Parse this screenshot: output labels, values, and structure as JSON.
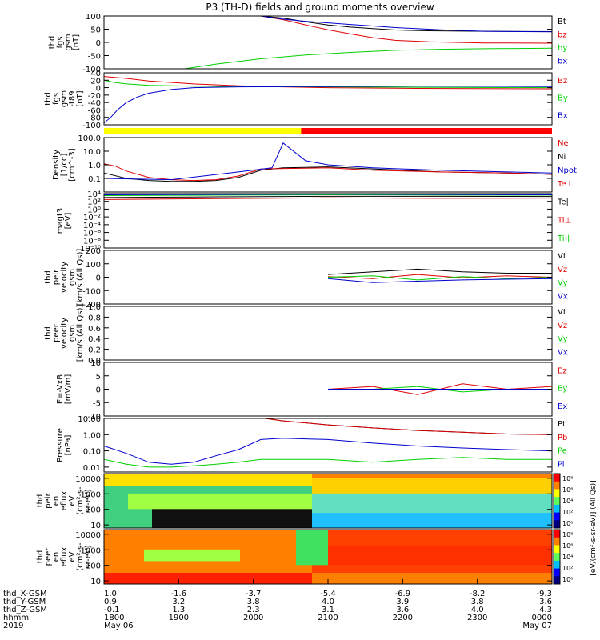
{
  "title": "P3 (TH-D) fields and ground moments overview",
  "colors": {
    "black": "#000000",
    "red": "#e00000",
    "green": "#00d000",
    "blue": "#0000d0",
    "yellow": "#ffff00",
    "bar_red": "#ff0000"
  },
  "chart_data": [
    {
      "type": "line",
      "id": "fgs",
      "ylabel": [
        "thd",
        "fgs",
        "gsm",
        "[nT]"
      ],
      "ylim": [
        -100,
        100
      ],
      "yticks": [
        "100",
        "50",
        "0",
        "-50",
        "-100"
      ],
      "tick_values": [
        100,
        50,
        0,
        -50,
        -100
      ],
      "legend": [
        {
          "name": "Bt",
          "color": "#000000"
        },
        {
          "name": "bz",
          "color": "#e00000"
        },
        {
          "name": "by",
          "color": "#00d000"
        },
        {
          "name": "bx",
          "color": "#0000d0"
        }
      ],
      "series": [
        {
          "name": "Bt",
          "color": "#000000",
          "x": [
            1.7,
            1.8,
            1.9,
            2.0,
            2.1,
            2.2,
            2.3,
            2.45,
            2.7,
            3.0
          ],
          "y": [
            100,
            92,
            78,
            66,
            58,
            52,
            47,
            44,
            42,
            41
          ]
        },
        {
          "name": "bz",
          "color": "#e00000",
          "x": [
            1.7,
            1.8,
            1.9,
            2.0,
            2.1,
            2.2,
            2.3,
            2.45,
            2.7,
            3.0
          ],
          "y": [
            100,
            86,
            66,
            48,
            32,
            18,
            8,
            2,
            -2,
            -3
          ]
        },
        {
          "name": "by",
          "color": "#00d000",
          "x": [
            1.36,
            1.5,
            1.7,
            1.9,
            2.1,
            2.3,
            2.5,
            2.7,
            3.0
          ],
          "y": [
            -100,
            -82,
            -62,
            -48,
            -38,
            -30,
            -26,
            -24,
            -22
          ]
        },
        {
          "name": "bx",
          "color": "#0000d0",
          "x": [
            1.7,
            1.8,
            1.9,
            2.0,
            2.1,
            2.2,
            2.3,
            2.5,
            2.7,
            3.0
          ],
          "y": [
            100,
            88,
            80,
            74,
            68,
            62,
            56,
            48,
            42,
            40
          ]
        }
      ]
    },
    {
      "type": "line",
      "id": "fgs-t89",
      "ylabel": [
        "thd",
        "fgs",
        "gsm",
        "-t89",
        "[nT]"
      ],
      "ylim": [
        -100,
        40
      ],
      "yticks": [
        "40",
        "20",
        "0",
        "-20",
        "-40",
        "-60",
        "-80",
        "-100"
      ],
      "tick_values": [
        40,
        20,
        0,
        -20,
        -40,
        -60,
        -80,
        -100
      ],
      "legend": [
        {
          "name": "Bz",
          "color": "#e00000"
        },
        {
          "name": "By",
          "color": "#00d000"
        },
        {
          "name": "Bx",
          "color": "#0000d0"
        }
      ],
      "series": [
        {
          "name": "Bz",
          "color": "#e00000",
          "x": [
            1.0,
            1.1,
            1.2,
            1.4,
            1.6,
            1.8,
            2.0,
            2.4,
            3.0
          ],
          "y": [
            30,
            25,
            18,
            10,
            5,
            2,
            0,
            -2,
            -3
          ]
        },
        {
          "name": "By",
          "color": "#00d000",
          "x": [
            1.0,
            1.05,
            1.1,
            1.2,
            1.4,
            1.6,
            2.0,
            2.4,
            3.0
          ],
          "y": [
            20,
            14,
            10,
            6,
            4,
            3,
            2,
            1,
            0
          ]
        },
        {
          "name": "Bx",
          "color": "#0000d0",
          "x": [
            1.0,
            1.03,
            1.06,
            1.1,
            1.15,
            1.2,
            1.3,
            1.4,
            1.6,
            2.0,
            2.4,
            3.0
          ],
          "y": [
            -95,
            -80,
            -60,
            -40,
            -25,
            -15,
            -5,
            0,
            2,
            3,
            4,
            3
          ]
        }
      ]
    },
    {
      "type": "line",
      "id": "density",
      "ylabel": [
        "Density",
        "[1/cc]",
        "[cm^-3]"
      ],
      "scale": "log",
      "ylim": [
        0.01,
        100
      ],
      "yticks": [
        "100.0",
        "10.0",
        "1.0",
        "0.1"
      ],
      "tick_values": [
        100,
        10,
        1,
        0.1
      ],
      "legend": [
        {
          "name": "Ne",
          "color": "#e00000"
        },
        {
          "name": "Ni",
          "color": "#000000"
        },
        {
          "name": "Npot",
          "color": "#0000d0"
        },
        {
          "name": "Te⊥",
          "color": "#e00000"
        }
      ],
      "series": [
        {
          "name": "Ni",
          "color": "#000000",
          "x": [
            1.0,
            1.1,
            1.2,
            1.3,
            1.4,
            1.5,
            1.6,
            1.7,
            1.8,
            2.0,
            2.2,
            2.5,
            2.8,
            3.0
          ],
          "y": [
            0.25,
            0.1,
            0.07,
            0.06,
            0.06,
            0.07,
            0.12,
            0.4,
            0.6,
            0.7,
            0.5,
            0.3,
            0.25,
            0.2
          ]
        },
        {
          "name": "Ne",
          "color": "#e00000",
          "x": [
            1.0,
            1.05,
            1.1,
            1.2,
            1.3,
            1.4,
            1.5,
            1.6,
            1.7,
            2.0,
            2.2,
            2.5,
            2.8,
            3.0
          ],
          "y": [
            1.2,
            0.8,
            0.35,
            0.12,
            0.08,
            0.07,
            0.08,
            0.15,
            0.5,
            0.6,
            0.4,
            0.3,
            0.25,
            0.2
          ]
        },
        {
          "name": "Npot",
          "color": "#0000d0",
          "x": [
            1.0,
            1.3,
            1.6,
            1.75,
            1.8,
            1.9,
            2.0,
            2.2,
            2.5,
            2.8,
            3.0
          ],
          "y": [
            0.1,
            0.08,
            0.3,
            0.6,
            40,
            2.0,
            1.0,
            0.6,
            0.4,
            0.3,
            0.25
          ]
        }
      ]
    },
    {
      "type": "line",
      "id": "temperature",
      "ylabel": [
        "magt3",
        "[eV]"
      ],
      "scale": "log",
      "ylim": [
        1e-10,
        10000
      ],
      "yticks": [
        "10⁴",
        "10²",
        "10⁰",
        "10⁻²",
        "10⁻⁴",
        "10⁻⁶",
        "10⁻⁸",
        "10⁻¹⁰"
      ],
      "tick_values": [
        10000,
        100,
        1,
        0.01,
        0.0001,
        1e-06,
        1e-08,
        1e-10
      ],
      "legend": [
        {
          "name": "Te||",
          "color": "#000000"
        },
        {
          "name": "Ti⊥",
          "color": "#e00000"
        },
        {
          "name": "Ti||",
          "color": "#00d000"
        }
      ],
      "series": [
        {
          "name": "Te||",
          "color": "#000000",
          "x": [
            1.0,
            1.5,
            2.0,
            2.5,
            3.0
          ],
          "y": [
            1000,
            1500,
            2000,
            2000,
            1800
          ]
        },
        {
          "name": "Ti⊥",
          "color": "#e00000",
          "x": [
            1.0,
            1.5,
            2.0,
            2.5,
            3.0
          ],
          "y": [
            300,
            500,
            800,
            600,
            700
          ]
        },
        {
          "name": "Ti||",
          "color": "#00d000",
          "x": [
            1.0,
            1.5,
            2.0,
            2.5,
            3.0
          ],
          "y": [
            3000,
            4000,
            5000,
            4500,
            4000
          ]
        },
        {
          "name": "Te⊥",
          "color": "#0000d0",
          "x": [
            1.0,
            1.5,
            2.0,
            2.5,
            3.0
          ],
          "y": [
            5000,
            6000,
            7000,
            6000,
            5000
          ]
        }
      ]
    },
    {
      "type": "line",
      "id": "peir-velocity",
      "ylabel": [
        "thd",
        "peir",
        "velocity",
        "gsm",
        "[km/s (All Qs)]"
      ],
      "ylim": [
        -200,
        200
      ],
      "yticks": [
        "200",
        "100",
        "0",
        "-100",
        "-200"
      ],
      "tick_values": [
        200,
        100,
        0,
        -100,
        -200
      ],
      "legend": [
        {
          "name": "Vt",
          "color": "#000000"
        },
        {
          "name": "Vz",
          "color": "#e00000"
        },
        {
          "name": "Vy",
          "color": "#00d000"
        },
        {
          "name": "Vx",
          "color": "#0000d0"
        }
      ],
      "series": [
        {
          "name": "Vt",
          "color": "#000000",
          "x": [
            2.0,
            2.2,
            2.4,
            2.6,
            2.8,
            3.0
          ],
          "y": [
            20,
            40,
            60,
            40,
            30,
            30
          ]
        },
        {
          "name": "Vz",
          "color": "#e00000",
          "x": [
            2.0,
            2.2,
            2.4,
            2.6,
            2.8,
            3.0
          ],
          "y": [
            5,
            -10,
            20,
            -5,
            10,
            0
          ]
        },
        {
          "name": "Vy",
          "color": "#00d000",
          "x": [
            2.0,
            2.2,
            2.4,
            2.6,
            2.8,
            3.0
          ],
          "y": [
            0,
            10,
            -20,
            5,
            -10,
            0
          ]
        },
        {
          "name": "Vx",
          "color": "#0000d0",
          "x": [
            2.0,
            2.2,
            2.4,
            2.6,
            2.8,
            3.0
          ],
          "y": [
            -10,
            -40,
            -30,
            -20,
            -15,
            -10
          ]
        }
      ]
    },
    {
      "type": "line",
      "id": "peer-velocity",
      "ylabel": [
        "thd",
        "peer",
        "velocity",
        "gsm",
        "[km/s (All Qs)]"
      ],
      "ylim": [
        0,
        1
      ],
      "yticks": [
        "1.0",
        "0.8",
        "0.6",
        "0.4",
        "0.2",
        "0.0"
      ],
      "tick_values": [
        1.0,
        0.8,
        0.6,
        0.4,
        0.2,
        0.0
      ],
      "legend": [
        {
          "name": "Vt",
          "color": "#000000"
        },
        {
          "name": "Vz",
          "color": "#e00000"
        },
        {
          "name": "Vy",
          "color": "#00d000"
        },
        {
          "name": "Vx",
          "color": "#0000d0"
        }
      ],
      "series": []
    },
    {
      "type": "line",
      "id": "e-field",
      "ylabel": [
        "E=-VxB",
        "[mV/m]"
      ],
      "ylim": [
        -10,
        10
      ],
      "yticks": [
        "10",
        "5",
        "0",
        "-5",
        "-10"
      ],
      "tick_values": [
        10,
        5,
        0,
        -5,
        -10
      ],
      "legend": [
        {
          "name": "Ez",
          "color": "#e00000"
        },
        {
          "name": "Ey",
          "color": "#00d000"
        },
        {
          "name": "Ex",
          "color": "#0000d0"
        }
      ],
      "series": [
        {
          "name": "Ez",
          "color": "#e00000",
          "x": [
            2.0,
            2.2,
            2.4,
            2.6,
            2.8,
            3.0
          ],
          "y": [
            0,
            1,
            -2,
            2,
            0,
            1
          ]
        },
        {
          "name": "Ey",
          "color": "#00d000",
          "x": [
            2.0,
            2.2,
            2.4,
            2.6,
            2.8,
            3.0
          ],
          "y": [
            0,
            0,
            1,
            -1,
            0,
            0
          ]
        },
        {
          "name": "Ex",
          "color": "#0000d0",
          "x": [
            2.0,
            2.2,
            2.4,
            2.6,
            2.8,
            3.0
          ],
          "y": [
            0,
            0,
            0,
            0,
            0,
            0
          ]
        }
      ]
    },
    {
      "type": "line",
      "id": "pressure",
      "ylabel": [
        "Pressure",
        "[nPa]"
      ],
      "scale": "log",
      "ylim": [
        0.005,
        10
      ],
      "yticks": [
        "10.00",
        "1.00",
        "0.10",
        "0.01"
      ],
      "tick_values": [
        10,
        1,
        0.1,
        0.01
      ],
      "legend": [
        {
          "name": "Pt",
          "color": "#000000"
        },
        {
          "name": "Pb",
          "color": "#e00000"
        },
        {
          "name": "Pe",
          "color": "#00d000"
        },
        {
          "name": "Pi",
          "color": "#0000d0"
        }
      ],
      "series": [
        {
          "name": "Pt",
          "color": "#000000",
          "x": [
            1.72,
            1.8,
            2.0,
            2.2,
            2.4,
            2.6,
            2.8,
            3.0
          ],
          "y": [
            10,
            7,
            4,
            2.6,
            1.8,
            1.4,
            1.1,
            1.0
          ]
        },
        {
          "name": "Pb",
          "color": "#e00000",
          "x": [
            1.72,
            1.8,
            2.0,
            2.2,
            2.4,
            2.6,
            2.8,
            3.0
          ],
          "y": [
            10,
            7,
            4,
            2.6,
            1.8,
            1.4,
            1.1,
            1.0
          ]
        },
        {
          "name": "Pe",
          "color": "#00d000",
          "x": [
            1.0,
            1.1,
            1.2,
            1.3,
            1.4,
            1.5,
            1.6,
            1.7,
            1.8,
            2.0,
            2.2,
            2.4,
            2.6,
            2.8,
            3.0
          ],
          "y": [
            0.03,
            0.015,
            0.01,
            0.01,
            0.012,
            0.015,
            0.02,
            0.03,
            0.03,
            0.03,
            0.02,
            0.03,
            0.04,
            0.03,
            0.03
          ]
        },
        {
          "name": "Pi",
          "color": "#0000d0",
          "x": [
            1.0,
            1.1,
            1.2,
            1.3,
            1.4,
            1.5,
            1.6,
            1.7,
            1.8,
            2.0,
            2.2,
            2.4,
            2.6,
            2.8,
            3.0
          ],
          "y": [
            0.2,
            0.07,
            0.02,
            0.015,
            0.02,
            0.05,
            0.12,
            0.5,
            0.6,
            0.5,
            0.3,
            0.2,
            0.15,
            0.12,
            0.1
          ]
        }
      ]
    },
    {
      "type": "heatmap",
      "id": "peir-eflux",
      "ylabel": [
        "thd",
        "peir",
        "en",
        "eflux",
        "eV",
        "(cm²-s-",
        "sr-eV)"
      ],
      "yticks": [
        "10000",
        "1000",
        "100",
        "10"
      ],
      "tick_values": [
        10000,
        1000,
        100,
        10
      ]
    },
    {
      "type": "heatmap",
      "id": "peer-eflux",
      "ylabel": [
        "thd",
        "peer",
        "en",
        "eflux",
        "eV",
        "(cm²-s-",
        "sr-eV)"
      ],
      "yticks": [
        "10000",
        "1000",
        "100",
        "10"
      ],
      "tick_values": [
        10000,
        1000,
        100,
        10
      ]
    }
  ],
  "colorbar": {
    "label": "[eV/(cm²-s-sr-eV)] (All Qs)]",
    "ticks": [
      "10⁸",
      "10⁶",
      "10⁴",
      "10²",
      "10⁰"
    ]
  },
  "x_axis": {
    "rows": [
      {
        "label": "thd_X-GSM",
        "values": [
          "1.0",
          "-1.6",
          "-3.7",
          "-5.4",
          "-6.9",
          "-8.2",
          "-9.3"
        ]
      },
      {
        "label": "thd_Y-GSM",
        "values": [
          "0.9",
          "3.2",
          "3.8",
          "4.0",
          "3.9",
          "3.8",
          "3.6"
        ]
      },
      {
        "label": "thd_Z-GSM",
        "values": [
          "-0.1",
          "1.3",
          "2.3",
          "3.1",
          "3.6",
          "4.0",
          "4.3"
        ]
      },
      {
        "label": "hhmm",
        "values": [
          "1800",
          "1900",
          "2000",
          "2100",
          "2200",
          "2300",
          "0000"
        ]
      },
      {
        "label": "2019",
        "values": [
          "May 06",
          "",
          "",
          "",
          "",
          "",
          "May 07"
        ]
      }
    ]
  }
}
